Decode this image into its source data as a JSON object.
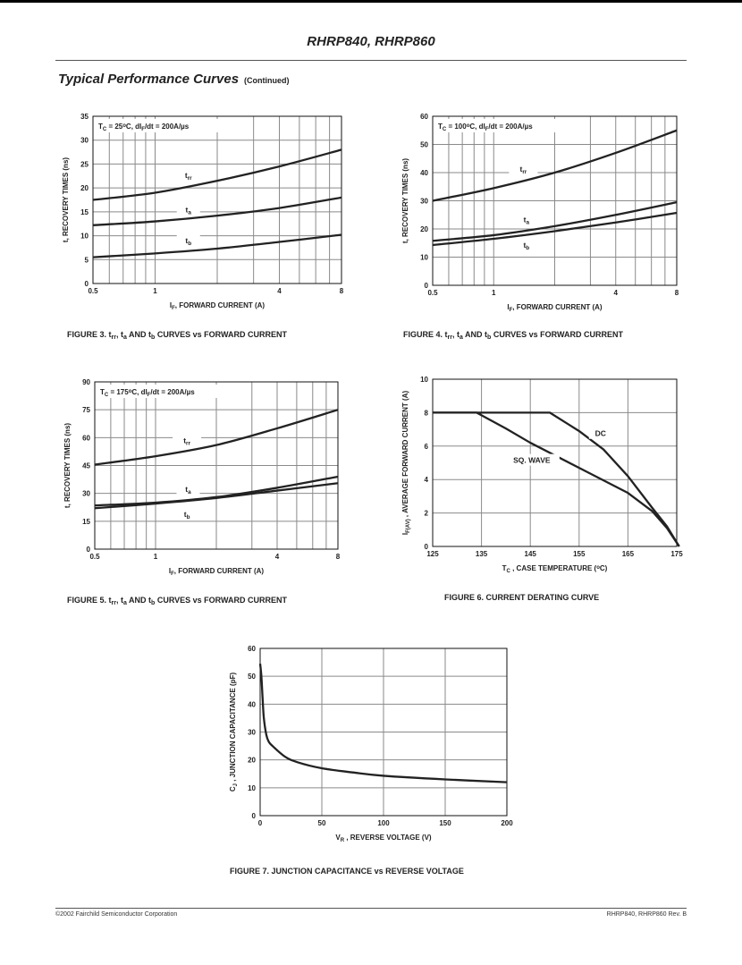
{
  "header": {
    "title": "RHRP840, RHRP860"
  },
  "section": {
    "title": "Typical Performance Curves",
    "note": "(Continued)"
  },
  "captions": [
    [
      {
        "t": "FIGURE 3.  t"
      },
      {
        "t": "rr",
        "s": "sub"
      },
      {
        "t": ", t"
      },
      {
        "t": "a",
        "s": "sub"
      },
      {
        "t": " AND t"
      },
      {
        "t": "b",
        "s": "sub"
      },
      {
        "t": " CURVES vs FORWARD CURRENT"
      }
    ],
    [
      {
        "t": "FIGURE 4.  t"
      },
      {
        "t": "rr",
        "s": "sub"
      },
      {
        "t": ", t"
      },
      {
        "t": "a",
        "s": "sub"
      },
      {
        "t": " AND t"
      },
      {
        "t": "b",
        "s": "sub"
      },
      {
        "t": " CURVES vs FORWARD CURRENT"
      }
    ],
    [
      {
        "t": "FIGURE 5.  t"
      },
      {
        "t": "rr",
        "s": "sub"
      },
      {
        "t": ", t"
      },
      {
        "t": "a",
        "s": "sub"
      },
      {
        "t": " AND t"
      },
      {
        "t": "b",
        "s": "sub"
      },
      {
        "t": " CURVES vs FORWARD CURRENT"
      }
    ],
    [
      {
        "t": "FIGURE 6.  CURRENT DERATING CURVE"
      }
    ],
    [
      {
        "t": "FIGURE 7.  JUNCTION CAPACITANCE vs REVERSE VOLTAGE"
      }
    ]
  ],
  "footer": {
    "left": "©2002 Fairchild Semiconductor Corporation",
    "right": "RHRP840, RHRP860 Rev. B"
  },
  "colors": {
    "curve": "#222222",
    "grid": "#8a8a8a",
    "frame": "#111111"
  },
  "chart_data": [
    {
      "type": "line",
      "xscale": "log",
      "xlim": [
        0.5,
        8
      ],
      "ylim": [
        0,
        35
      ],
      "grid": true,
      "xticks": [
        "0.5",
        "1",
        "4",
        "8"
      ],
      "xtick_values": [
        0.5,
        1,
        4,
        8
      ],
      "yticks": [
        "0",
        "5",
        "10",
        "15",
        "20",
        "25",
        "30",
        "35"
      ],
      "xlabel": [
        {
          "t": "I"
        },
        {
          "t": "F",
          "s": "sub"
        },
        {
          "t": ", FORWARD CURRENT (A)"
        }
      ],
      "ylabel": [
        {
          "t": "t, RECOVERY TIMES (ns)"
        }
      ],
      "condition": [
        {
          "t": "T"
        },
        {
          "t": "C",
          "s": "sub"
        },
        {
          "t": " = 25"
        },
        {
          "t": "o",
          "s": "sup"
        },
        {
          "t": "C, dI"
        },
        {
          "t": "F",
          "s": "sub"
        },
        {
          "t": "/dt = 200A/µs"
        }
      ],
      "x": [
        0.5,
        1,
        2,
        4,
        8
      ],
      "series": [
        {
          "name": "trr",
          "label": [
            {
              "t": "t"
            },
            {
              "t": "rr",
              "s": "sub"
            }
          ],
          "label_at": [
            1.45,
            22.5
          ],
          "values": [
            17.5,
            19,
            21.5,
            24.5,
            28
          ]
        },
        {
          "name": "ta",
          "label": [
            {
              "t": "t"
            },
            {
              "t": "a",
              "s": "sub"
            }
          ],
          "label_at": [
            1.45,
            15.3
          ],
          "values": [
            12.2,
            13,
            14.2,
            15.8,
            18
          ]
        },
        {
          "name": "tb",
          "label": [
            {
              "t": "t"
            },
            {
              "t": "b",
              "s": "sub"
            }
          ],
          "label_at": [
            1.45,
            8.8
          ],
          "values": [
            5.5,
            6.3,
            7.3,
            8.7,
            10.2
          ]
        }
      ]
    },
    {
      "type": "line",
      "xscale": "log",
      "xlim": [
        0.5,
        8
      ],
      "ylim": [
        0,
        60
      ],
      "grid": true,
      "xticks": [
        "0.5",
        "1",
        "4",
        "8"
      ],
      "xtick_values": [
        0.5,
        1,
        4,
        8
      ],
      "yticks": [
        "0",
        "10",
        "20",
        "30",
        "40",
        "50",
        "60"
      ],
      "xlabel": [
        {
          "t": "I"
        },
        {
          "t": "F",
          "s": "sub"
        },
        {
          "t": ", FORWARD CURRENT (A)"
        }
      ],
      "ylabel": [
        {
          "t": "t, RECOVERY TIMES (ns)"
        }
      ],
      "condition": [
        {
          "t": "T"
        },
        {
          "t": "C",
          "s": "sub"
        },
        {
          "t": " = 100"
        },
        {
          "t": "o",
          "s": "sup"
        },
        {
          "t": "C, dI"
        },
        {
          "t": "F",
          "s": "sub"
        },
        {
          "t": "/dt = 200A/µs"
        }
      ],
      "x": [
        0.5,
        1,
        2,
        4,
        8
      ],
      "series": [
        {
          "name": "trr",
          "label": [
            {
              "t": "t"
            },
            {
              "t": "rr",
              "s": "sub"
            }
          ],
          "label_at": [
            1.4,
            41
          ],
          "values": [
            30,
            34.5,
            40,
            47,
            55
          ]
        },
        {
          "name": "ta",
          "label": [
            {
              "t": "t"
            },
            {
              "t": "a",
              "s": "sub"
            }
          ],
          "label_at": [
            1.45,
            23
          ],
          "values": [
            15.8,
            17.8,
            21,
            25,
            29.5
          ]
        },
        {
          "name": "tb",
          "label": [
            {
              "t": "t"
            },
            {
              "t": "b",
              "s": "sub"
            }
          ],
          "label_at": [
            1.45,
            14
          ],
          "values": [
            14.3,
            16.5,
            19.2,
            22.3,
            25.7
          ]
        }
      ]
    },
    {
      "type": "line",
      "xscale": "log",
      "xlim": [
        0.5,
        8
      ],
      "ylim": [
        0,
        90
      ],
      "grid": true,
      "xticks": [
        "0.5",
        "1",
        "4",
        "8"
      ],
      "xtick_values": [
        0.5,
        1,
        4,
        8
      ],
      "yticks": [
        "0",
        "15",
        "30",
        "45",
        "60",
        "75",
        "90"
      ],
      "xlabel": [
        {
          "t": "I"
        },
        {
          "t": "F",
          "s": "sub"
        },
        {
          "t": ", FORWARD CURRENT (A)"
        }
      ],
      "ylabel": [
        {
          "t": "t, RECOVERY TIMES (ns)"
        }
      ],
      "condition": [
        {
          "t": "T"
        },
        {
          "t": "C",
          "s": "sub"
        },
        {
          "t": " = 175"
        },
        {
          "t": "o",
          "s": "sup"
        },
        {
          "t": "C, dI"
        },
        {
          "t": "F",
          "s": "sub"
        },
        {
          "t": "/dt = 200A/µs"
        }
      ],
      "x": [
        0.5,
        1,
        2,
        4,
        8
      ],
      "series": [
        {
          "name": "trr",
          "label": [
            {
              "t": "t"
            },
            {
              "t": "rr",
              "s": "sub"
            }
          ],
          "label_at": [
            1.43,
            58
          ],
          "values": [
            45.5,
            50,
            56,
            65,
            75
          ]
        },
        {
          "name": "ta",
          "label": [
            {
              "t": "t"
            },
            {
              "t": "a",
              "s": "sub"
            }
          ],
          "label_at": [
            1.45,
            31.8
          ],
          "values": [
            23.5,
            25,
            28,
            33,
            39
          ]
        },
        {
          "name": "tb",
          "label": [
            {
              "t": "t"
            },
            {
              "t": "b",
              "s": "sub"
            }
          ],
          "label_at": [
            1.43,
            18.3
          ],
          "values": [
            22,
            24.5,
            27.5,
            31.5,
            35.5
          ]
        }
      ]
    },
    {
      "type": "line",
      "xscale": "linear",
      "xlim": [
        125,
        175
      ],
      "ylim": [
        0,
        10
      ],
      "grid": true,
      "xticks": [
        "125",
        "135",
        "145",
        "155",
        "165",
        "175"
      ],
      "xtick_values": [
        125,
        135,
        145,
        155,
        165,
        175
      ],
      "yticks": [
        "0",
        "2",
        "4",
        "6",
        "8",
        "10"
      ],
      "xlabel": [
        {
          "t": "T"
        },
        {
          "t": "C",
          "s": "sub"
        },
        {
          "t": " , CASE TEMPERATURE ("
        },
        {
          "t": "o",
          "s": "sup"
        },
        {
          "t": "C)"
        }
      ],
      "ylabel": [
        {
          "t": "I"
        },
        {
          "t": "F(AV)",
          "s": "sub"
        },
        {
          "t": " , AVERAGE FORWARD CURRENT (A)"
        }
      ],
      "series": [
        {
          "name": "DC",
          "label": [
            {
              "t": "DC"
            }
          ],
          "label_at": [
            159.4,
            6.7
          ],
          "points": [
            [
              125,
              8
            ],
            [
              149,
              8
            ],
            [
              155,
              6.9
            ],
            [
              160,
              5.8
            ],
            [
              165,
              4.2
            ],
            [
              170,
              2.3
            ],
            [
              173,
              1.2
            ],
            [
              175.5,
              0
            ]
          ]
        },
        {
          "name": "SQ. WAVE",
          "label": [
            {
              "t": "SQ. WAVE"
            }
          ],
          "label_at": [
            145.3,
            5.1
          ],
          "points": [
            [
              125,
              8
            ],
            [
              134,
              8
            ],
            [
              140,
              7.05
            ],
            [
              145,
              6.2
            ],
            [
              155,
              4.7
            ],
            [
              165,
              3.2
            ],
            [
              170,
              2.1
            ],
            [
              173,
              1.1
            ],
            [
              175.5,
              0
            ]
          ]
        }
      ]
    },
    {
      "type": "line",
      "xscale": "linear",
      "xlim": [
        0,
        200
      ],
      "ylim": [
        0,
        60
      ],
      "grid": true,
      "xticks": [
        "0",
        "50",
        "100",
        "150",
        "200"
      ],
      "xtick_values": [
        0,
        50,
        100,
        150,
        200
      ],
      "yticks": [
        "0",
        "10",
        "20",
        "30",
        "40",
        "50",
        "60"
      ],
      "xlabel": [
        {
          "t": "V"
        },
        {
          "t": "R",
          "s": "sub"
        },
        {
          "t": " , REVERSE VOLTAGE (V)"
        }
      ],
      "ylabel": [
        {
          "t": "C"
        },
        {
          "t": "J",
          "s": "sub"
        },
        {
          "t": " , JUNCTION CAPACITANCE (pF)"
        }
      ],
      "series": [
        {
          "name": "CJ",
          "points": [
            [
              0,
              54.5
            ],
            [
              1,
              50
            ],
            [
              2,
              42
            ],
            [
              3,
              35
            ],
            [
              5,
              29
            ],
            [
              7,
              26.5
            ],
            [
              10,
              25
            ],
            [
              20,
              21.2
            ],
            [
              30,
              19.2
            ],
            [
              50,
              17
            ],
            [
              75,
              15.5
            ],
            [
              100,
              14.3
            ],
            [
              150,
              13
            ],
            [
              200,
              12
            ]
          ]
        }
      ]
    }
  ]
}
